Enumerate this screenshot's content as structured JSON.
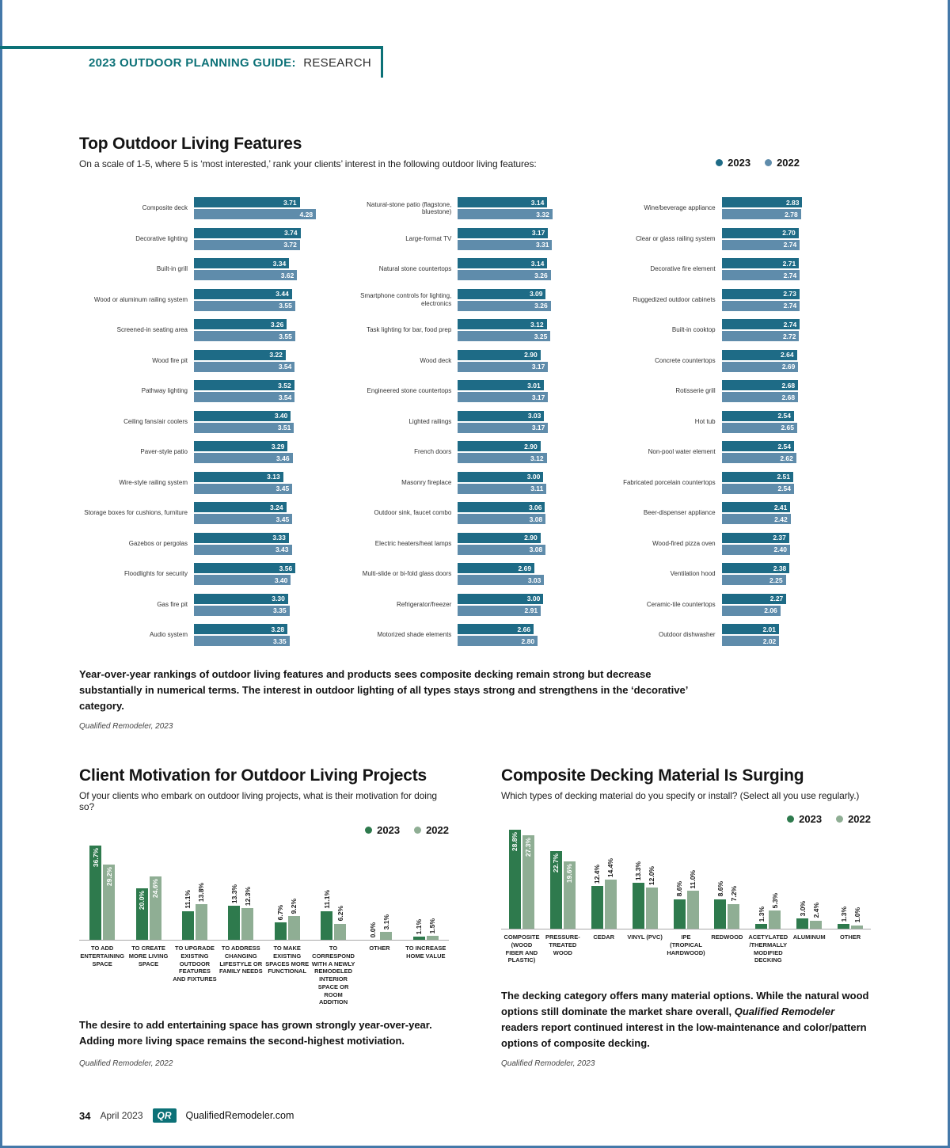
{
  "page": {
    "header": {
      "kicker_bold": "2023 OUTDOOR PLANNING GUIDE:",
      "kicker_regular": "RESEARCH"
    },
    "footer": {
      "page_number": "34",
      "date": "April 2023",
      "logo": "QR",
      "site": "QualifiedRemodeler.com"
    }
  },
  "colors": {
    "brand_teal": "#0c7177",
    "bar_2023_blue": "#1e6b86",
    "bar_2022_blue": "#5f8cab",
    "bar_2023_green": "#2e7a4d",
    "bar_2022_green": "#8fae94",
    "page_edge_blue": "#4478a9"
  },
  "chart_data": [
    {
      "type": "bar",
      "orientation": "horizontal",
      "title": "Top Outdoor Living Features",
      "subtitle": "On a scale of 1-5, where 5 is ‘most interested,’ rank your clients’ interest in the following outdoor living features:",
      "legend": [
        "2023",
        "2022"
      ],
      "xlim": [
        0,
        5
      ],
      "columns": [
        {
          "rows": [
            {
              "label": "Composite deck",
              "values": [
                3.71,
                4.28
              ]
            },
            {
              "label": "Decorative lighting",
              "values": [
                3.74,
                3.72
              ]
            },
            {
              "label": "Built-in grill",
              "values": [
                3.34,
                3.62
              ]
            },
            {
              "label": "Wood or aluminum railing system",
              "values": [
                3.44,
                3.55
              ]
            },
            {
              "label": "Screened-in seating area",
              "values": [
                3.26,
                3.55
              ]
            },
            {
              "label": "Wood fire pit",
              "values": [
                3.22,
                3.54
              ]
            },
            {
              "label": "Pathway lighting",
              "values": [
                3.52,
                3.54
              ]
            },
            {
              "label": "Ceiling fans/air coolers",
              "values": [
                3.4,
                3.51
              ]
            },
            {
              "label": "Paver-style patio",
              "values": [
                3.29,
                3.46
              ]
            },
            {
              "label": "Wire-style railing system",
              "values": [
                3.13,
                3.45
              ]
            },
            {
              "label": "Storage boxes for cushions, furniture",
              "values": [
                3.24,
                3.45
              ]
            },
            {
              "label": "Gazebos or pergolas",
              "values": [
                3.33,
                3.43
              ]
            },
            {
              "label": "Floodlights for security",
              "values": [
                3.56,
                3.4
              ]
            },
            {
              "label": "Gas fire pit",
              "values": [
                3.3,
                3.35
              ]
            },
            {
              "label": "Audio system",
              "values": [
                3.28,
                3.35
              ]
            }
          ]
        },
        {
          "rows": [
            {
              "label": "Natural-stone patio (flagstone, bluestone)",
              "values": [
                3.14,
                3.32
              ]
            },
            {
              "label": "Large-format TV",
              "values": [
                3.17,
                3.31
              ]
            },
            {
              "label": "Natural stone countertops",
              "values": [
                3.14,
                3.26
              ]
            },
            {
              "label": "Smartphone controls for lighting, electronics",
              "values": [
                3.09,
                3.26
              ]
            },
            {
              "label": "Task lighting for bar, food prep",
              "values": [
                3.12,
                3.25
              ]
            },
            {
              "label": "Wood deck",
              "values": [
                2.9,
                3.17
              ]
            },
            {
              "label": "Engineered stone countertops",
              "values": [
                3.01,
                3.17
              ]
            },
            {
              "label": "Lighted railings",
              "values": [
                3.03,
                3.17
              ]
            },
            {
              "label": "French doors",
              "values": [
                2.9,
                3.12
              ]
            },
            {
              "label": "Masonry fireplace",
              "values": [
                3.0,
                3.11
              ]
            },
            {
              "label": "Outdoor sink, faucet combo",
              "values": [
                3.06,
                3.08
              ]
            },
            {
              "label": "Electric heaters/heat lamps",
              "values": [
                2.9,
                3.08
              ]
            },
            {
              "label": "Multi-slide or bi-fold glass doors",
              "values": [
                2.69,
                3.03
              ]
            },
            {
              "label": "Refrigerator/freezer",
              "values": [
                3.0,
                2.91
              ]
            },
            {
              "label": "Motorized shade elements",
              "values": [
                2.66,
                2.8
              ]
            }
          ]
        },
        {
          "rows": [
            {
              "label": "Wine/beverage appliance",
              "values": [
                2.83,
                2.78
              ]
            },
            {
              "label": "Clear or glass railing system",
              "values": [
                2.7,
                2.74
              ]
            },
            {
              "label": "Decorative fire element",
              "values": [
                2.71,
                2.74
              ]
            },
            {
              "label": "Ruggedized outdoor cabinets",
              "values": [
                2.73,
                2.74
              ]
            },
            {
              "label": "Built-in cooktop",
              "values": [
                2.74,
                2.72
              ]
            },
            {
              "label": "Concrete countertops",
              "values": [
                2.64,
                2.69
              ]
            },
            {
              "label": "Rotisserie grill",
              "values": [
                2.68,
                2.68
              ]
            },
            {
              "label": "Hot tub",
              "values": [
                2.54,
                2.65
              ]
            },
            {
              "label": "Non-pool water element",
              "values": [
                2.54,
                2.62
              ]
            },
            {
              "label": "Fabricated porcelain countertops",
              "values": [
                2.51,
                2.54
              ]
            },
            {
              "label": "Beer-dispenser appliance",
              "values": [
                2.41,
                2.42
              ]
            },
            {
              "label": "Wood-fired pizza oven",
              "values": [
                2.37,
                2.4
              ]
            },
            {
              "label": "Ventilation hood",
              "values": [
                2.38,
                2.25
              ]
            },
            {
              "label": "Ceramic-tile countertops",
              "values": [
                2.27,
                2.06
              ]
            },
            {
              "label": "Outdoor dishwasher",
              "values": [
                2.01,
                2.02
              ]
            }
          ]
        }
      ],
      "caption": "Year-over-year rankings of outdoor living features and products sees composite decking remain strong but decrease substantially in numerical terms. The interest in outdoor lighting of all types stays strong and strengthens in the ‘decorative’ category.",
      "source": "Qualified Remodeler, 2023"
    },
    {
      "type": "bar",
      "orientation": "vertical",
      "title": "Client Motivation for Outdoor Living Projects",
      "subtitle": "Of your clients who embark on outdoor living projects, what is their motivation for doing so?",
      "legend": [
        "2023",
        "2022"
      ],
      "ylim": [
        0,
        40
      ],
      "categories": [
        "TO ADD ENTERTAINING SPACE",
        "TO CREATE MORE LIVING SPACE",
        "TO UPGRADE EXISTING OUTDOOR FEATURES AND FIXTURES",
        "TO ADDRESS CHANGING LIFESTYLE OR FAMILY NEEDS",
        "TO MAKE EXISTING SPACES MORE FUNCTIONAL",
        "TO CORRESPOND WITH A NEWLY REMODELED INTERIOR SPACE OR ROOM ADDITION",
        "OTHER",
        "TO INCREASE HOME VALUE"
      ],
      "series": [
        {
          "name": "2023",
          "values": [
            36.7,
            20.0,
            11.1,
            13.3,
            6.7,
            11.1,
            0.0,
            1.1
          ]
        },
        {
          "name": "2022",
          "values": [
            29.2,
            24.6,
            13.8,
            12.3,
            9.2,
            6.2,
            3.1,
            1.5
          ]
        }
      ],
      "caption": "The desire to add entertaining space has grown strongly year-over-year. Adding more living space remains the second-highest motiviation.",
      "source": "Qualified Remodeler, 2022"
    },
    {
      "type": "bar",
      "orientation": "vertical",
      "title": "Composite Decking Material Is Surging",
      "subtitle": "Which types of decking material do you specify or install? (Select all you use regularly.)",
      "legend": [
        "2023",
        "2022"
      ],
      "ylim": [
        0,
        30
      ],
      "categories": [
        "COMPOSITE (WOOD FIBER AND PLASTIC)",
        "PRESSURE- TREATED WOOD",
        "CEDAR",
        "VINYL (PVC)",
        "IPE (TROPICAL HARDWOOD)",
        "REDWOOD",
        "ACETYLATED /THERMALLY MODIFIED DECKING",
        "ALUMINUM",
        "OTHER"
      ],
      "series": [
        {
          "name": "2023",
          "values": [
            28.8,
            22.7,
            12.4,
            13.3,
            8.6,
            8.6,
            1.3,
            3.0,
            1.3
          ]
        },
        {
          "name": "2022",
          "values": [
            27.3,
            19.6,
            14.4,
            12.0,
            11.0,
            7.2,
            5.3,
            2.4,
            1.0
          ]
        }
      ],
      "caption_parts": {
        "before": "The decking category offers many material options. While the natural wood options still dominate the market share overall, ",
        "italic": "Qualified Remodeler",
        "after": " readers report continued interest in the low-maintenance and color/pattern options of composite decking."
      },
      "source": "Qualified Remodeler, 2023"
    }
  ]
}
